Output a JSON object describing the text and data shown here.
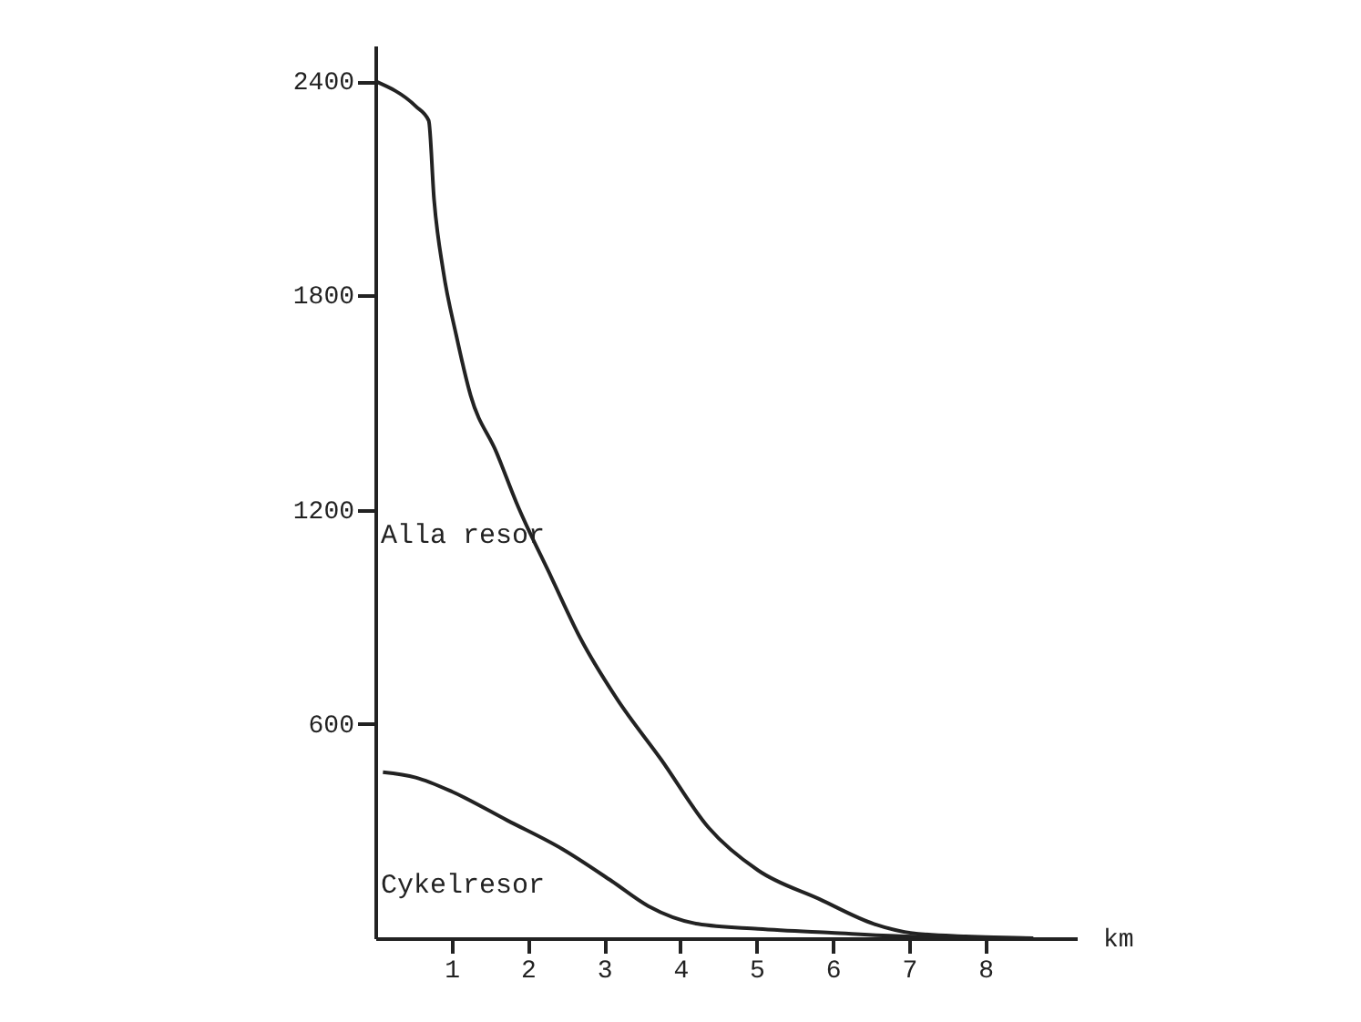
{
  "chart_data": {
    "type": "line",
    "xlabel": "km",
    "xlim": [
      0,
      9.2
    ],
    "ylim": [
      0,
      2500
    ],
    "xticks": [
      1,
      2,
      3,
      4,
      5,
      6,
      7,
      8
    ],
    "yticks": [
      600,
      1200,
      1800,
      2400
    ],
    "grid": false,
    "marker": "none",
    "line_style": "solid",
    "series": [
      {
        "name": "Alla resor",
        "color": "#222222",
        "x": [
          0,
          0.53,
          0.7,
          0.77,
          0.89,
          1.06,
          1.25,
          1.59,
          1.85,
          2.31,
          2.69,
          3.17,
          3.75,
          4.37,
          5.02,
          5.82,
          6.54,
          7.02,
          7.74,
          8.63
        ],
        "values": [
          2400,
          2330,
          2290,
          2070,
          1870,
          1690,
          1520,
          1360,
          1220,
          1010,
          840,
          670,
          500,
          310,
          190,
          110,
          40,
          15,
          5,
          0
        ]
      },
      {
        "name": "Cykelresor",
        "color": "#222222",
        "x": [
          0.1,
          0.53,
          1.01,
          1.73,
          2.45,
          3.1,
          3.58,
          4.23,
          5.02,
          5.98,
          6.95,
          8.56
        ],
        "values": [
          465,
          450,
          410,
          330,
          250,
          160,
          90,
          40,
          26,
          15,
          5,
          0
        ]
      }
    ]
  }
}
